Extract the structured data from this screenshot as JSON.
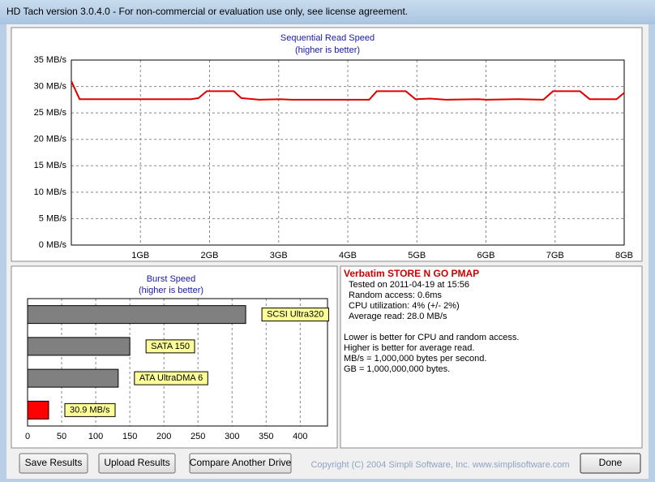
{
  "window": {
    "title": "HD Tach version 3.0.4.0  - For non-commercial or evaluation use only, see license agreement."
  },
  "chart_data": [
    {
      "type": "line",
      "title": "Sequential Read Speed",
      "subtitle": "(higher is better)",
      "x": [
        0,
        0.12,
        1.73,
        1.84,
        1.96,
        2.35,
        2.46,
        2.72,
        3.02,
        3.19,
        4.31,
        4.42,
        4.84,
        4.98,
        5.19,
        5.42,
        5.89,
        6.01,
        6.48,
        6.83,
        6.97,
        7.36,
        7.5,
        7.89,
        8
      ],
      "values": [
        31,
        27.6,
        27.6,
        27.8,
        29.1,
        29.1,
        27.8,
        27.5,
        27.6,
        27.5,
        27.5,
        29.1,
        29.1,
        27.6,
        27.7,
        27.5,
        27.6,
        27.5,
        27.6,
        27.5,
        29.1,
        29.1,
        27.6,
        27.6,
        28.8
      ],
      "color": "#dd0000",
      "xlim": [
        0,
        8
      ],
      "xticks": [
        {
          "value": 1,
          "label": "1GB"
        },
        {
          "value": 2,
          "label": "2GB"
        },
        {
          "value": 3,
          "label": "3GB"
        },
        {
          "value": 4,
          "label": "4GB"
        },
        {
          "value": 5,
          "label": "5GB"
        },
        {
          "value": 6,
          "label": "6GB"
        },
        {
          "value": 7,
          "label": "7GB"
        },
        {
          "value": 8,
          "label": "8GB"
        }
      ],
      "ylim": [
        0,
        35
      ],
      "yticks": [
        {
          "value": 0,
          "label": "0 MB/s"
        },
        {
          "value": 5,
          "label": "5 MB/s"
        },
        {
          "value": 10,
          "label": "10 MB/s"
        },
        {
          "value": 15,
          "label": "15 MB/s"
        },
        {
          "value": 20,
          "label": "20 MB/s"
        },
        {
          "value": 25,
          "label": "25 MB/s"
        },
        {
          "value": 30,
          "label": "30 MB/s"
        },
        {
          "value": 35,
          "label": "35 MB/s"
        }
      ],
      "grid": true
    },
    {
      "type": "bar",
      "orientation": "horizontal",
      "title": "Burst Speed",
      "subtitle": "(higher is better)",
      "categories": [
        "SCSI Ultra320",
        "SATA 150",
        "ATA UltraDMA 6",
        null
      ],
      "values": [
        320,
        150,
        133,
        30.9
      ],
      "value_labels": [
        null,
        null,
        null,
        "30.9 MB/s"
      ],
      "colors": [
        "#808080",
        "#808080",
        "#808080",
        "#ff0000"
      ],
      "xlim": [
        0,
        440
      ],
      "xticks": [
        0,
        50,
        100,
        150,
        200,
        250,
        300,
        350,
        400
      ],
      "grid": true
    }
  ],
  "info": {
    "drive": "Verbatim STORE N GO PMAP",
    "lines": [
      "Tested on 2011-04-19 at 15:56",
      "Random access: 0.6ms",
      "CPU utilization: 4% (+/- 2%)",
      "Average read: 28.0 MB/s"
    ],
    "notes": [
      "Lower is better for CPU and random access.",
      "Higher is better for average read.",
      "MB/s = 1,000,000 bytes per second.",
      "GB = 1,000,000,000 bytes."
    ]
  },
  "buttons": [
    "Save Results",
    "Upload Results",
    "Compare Another Drive",
    "Done"
  ],
  "copyright": "Copyright (C) 2004 Simpli Software, Inc. www.simplisoftware.com"
}
